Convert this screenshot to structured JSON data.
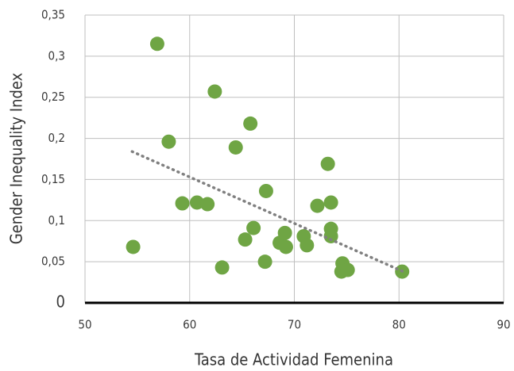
{
  "chart_data": {
    "type": "scatter",
    "x_label": "Tasa de Actividad Femenina",
    "y_label": "Gender Inequality Index",
    "color": "#6fa544",
    "x": [
      54.6,
      56.9,
      58.0,
      59.3,
      60.7,
      61.7,
      62.4,
      63.1,
      64.4,
      65.3,
      65.8,
      66.1,
      67.3,
      67.2,
      68.6,
      69.1,
      69.2,
      70.9,
      71.2,
      72.2,
      73.2,
      73.5,
      73.5,
      73.5,
      74.6,
      74.5,
      75.1,
      80.3
    ],
    "values": [
      0.068,
      0.315,
      0.196,
      0.121,
      0.122,
      0.12,
      0.257,
      0.043,
      0.189,
      0.077,
      0.218,
      0.091,
      0.136,
      0.05,
      0.073,
      0.085,
      0.068,
      0.081,
      0.07,
      0.118,
      0.169,
      0.122,
      0.09,
      0.081,
      0.048,
      0.038,
      0.04,
      0.038
    ],
    "trendline": {
      "x": [
        54.5,
        80.4
      ],
      "y": [
        0.184,
        0.038
      ],
      "color": "#808080"
    },
    "xlim": [
      50,
      90
    ],
    "xticks": [
      50,
      60,
      70,
      80,
      90
    ],
    "ylim": [
      0,
      0.35
    ],
    "yticks": [
      {
        "value": 0,
        "label": "0"
      },
      {
        "value": 0.05,
        "label": "0,05"
      },
      {
        "value": 0.1,
        "label": "0,1"
      },
      {
        "value": 0.15,
        "label": "0,15"
      },
      {
        "value": 0.2,
        "label": "0,2"
      },
      {
        "value": 0.25,
        "label": "0,25"
      },
      {
        "value": 0.3,
        "label": "0,3"
      },
      {
        "value": 0.35,
        "label": "0,35"
      }
    ],
    "grid": true
  }
}
